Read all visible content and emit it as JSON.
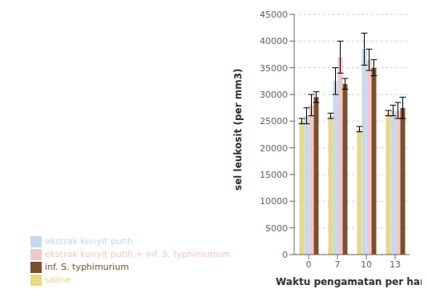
{
  "chart_data": {
    "type": "bar",
    "categories": [
      "0",
      "7",
      "10",
      "13"
    ],
    "series": [
      {
        "name": "saline",
        "color": "#E8D888",
        "values": [
          25000,
          26000,
          23500,
          26500
        ],
        "errors": [
          500,
          500,
          500,
          500
        ]
      },
      {
        "name": "ekstrak kunyit putih",
        "color": "#C5D9EE",
        "values": [
          26000,
          32500,
          38500,
          27000
        ],
        "errors": [
          1500,
          2500,
          3000,
          1000
        ]
      },
      {
        "name": "ekstrak kunyit putih + inf. S. typhimurium",
        "color": "#F0C8C8",
        "values": [
          28000,
          37000,
          36500,
          27000
        ],
        "errors": [
          2000,
          3000,
          2000,
          1500
        ]
      },
      {
        "name": "inf. S. typhimurium",
        "color": "#7B4F2E",
        "values": [
          29500,
          32000,
          35000,
          27500
        ],
        "errors": [
          1000,
          1000,
          1500,
          2000
        ]
      }
    ],
    "xlabel": "Waktu pengamatan per hari",
    "ylabel": "sel leukosit (per mm3)",
    "ylim": [
      0,
      45000
    ],
    "yticks": [
      0,
      5000,
      10000,
      15000,
      20000,
      25000,
      30000,
      35000,
      40000,
      45000
    ],
    "grid": true
  }
}
